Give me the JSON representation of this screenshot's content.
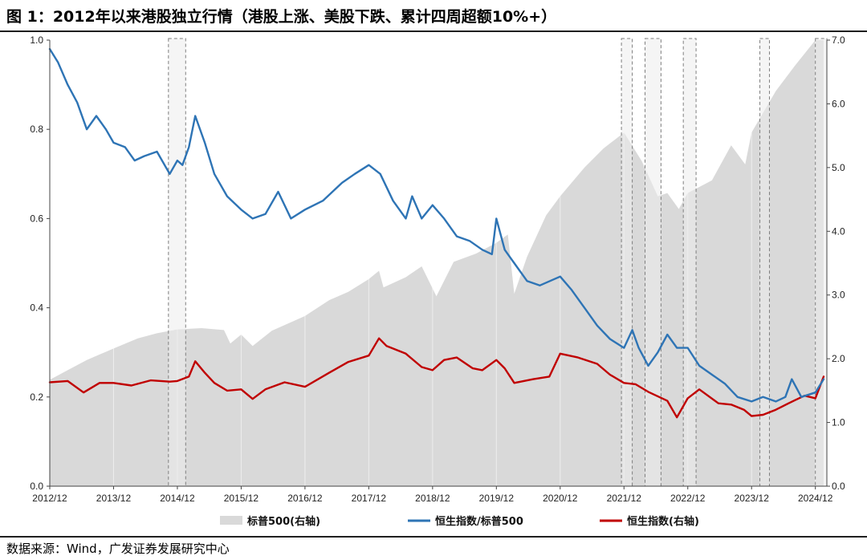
{
  "page": {
    "title": "图 1：2012年以来港股独立行情（港股上涨、美股下跌、累计四周超额10%+）",
    "source": "数据来源：Wind，广发证券发展研究中心"
  },
  "colors": {
    "area": "#d9d9d9",
    "ratio_line": "#2e74b5",
    "hsi_line": "#c00000",
    "highlight_fill": "#ececec",
    "highlight_border": "#7f7f7f"
  },
  "chart_data": {
    "type": "line",
    "x_ticks": [
      "2012/12",
      "2013/12",
      "2014/12",
      "2015/12",
      "2016/12",
      "2017/12",
      "2018/12",
      "2019/12",
      "2020/12",
      "2021/12",
      "2022/12",
      "2023/12",
      "2024/12"
    ],
    "y_left": {
      "min": 0,
      "max": 1,
      "ticks": [
        "0.0",
        "0.2",
        "0.4",
        "0.6",
        "0.8",
        "1.0"
      ]
    },
    "y_right": {
      "min": 0,
      "max": 7,
      "ticks": [
        "0.0",
        "1.0",
        "2.0",
        "3.0",
        "4.0",
        "5.0",
        "6.0",
        "7.0"
      ]
    },
    "grid": true,
    "legend_position": "bottom",
    "series": [
      {
        "name": "标普500(右轴)",
        "type": "area",
        "axis": "right",
        "points": [
          [
            2012.92,
            1.67
          ],
          [
            2013.2,
            1.82
          ],
          [
            2013.5,
            1.98
          ],
          [
            2013.92,
            2.16
          ],
          [
            2014.3,
            2.32
          ],
          [
            2014.6,
            2.4
          ],
          [
            2014.92,
            2.46
          ],
          [
            2015.3,
            2.48
          ],
          [
            2015.65,
            2.45
          ],
          [
            2015.75,
            2.24
          ],
          [
            2015.92,
            2.38
          ],
          [
            2016.1,
            2.2
          ],
          [
            2016.4,
            2.44
          ],
          [
            2016.92,
            2.67
          ],
          [
            2017.3,
            2.92
          ],
          [
            2017.6,
            3.05
          ],
          [
            2017.92,
            3.25
          ],
          [
            2018.08,
            3.38
          ],
          [
            2018.15,
            3.12
          ],
          [
            2018.5,
            3.28
          ],
          [
            2018.75,
            3.45
          ],
          [
            2018.98,
            2.98
          ],
          [
            2019.25,
            3.52
          ],
          [
            2019.6,
            3.65
          ],
          [
            2019.92,
            3.82
          ],
          [
            2020.1,
            3.95
          ],
          [
            2020.2,
            3.02
          ],
          [
            2020.4,
            3.6
          ],
          [
            2020.7,
            4.25
          ],
          [
            2020.92,
            4.55
          ],
          [
            2021.3,
            5.0
          ],
          [
            2021.6,
            5.3
          ],
          [
            2021.92,
            5.55
          ],
          [
            2022.2,
            5.1
          ],
          [
            2022.45,
            4.55
          ],
          [
            2022.6,
            4.6
          ],
          [
            2022.78,
            4.35
          ],
          [
            2022.92,
            4.6
          ],
          [
            2023.3,
            4.8
          ],
          [
            2023.6,
            5.35
          ],
          [
            2023.82,
            5.05
          ],
          [
            2023.92,
            5.55
          ],
          [
            2024.3,
            6.2
          ],
          [
            2024.6,
            6.6
          ],
          [
            2024.92,
            7.0
          ],
          [
            2025.05,
            7.0
          ]
        ]
      },
      {
        "name": "恒生指数/标普500",
        "type": "line",
        "axis": "left",
        "points": [
          [
            2012.92,
            0.98
          ],
          [
            2013.05,
            0.95
          ],
          [
            2013.2,
            0.9
          ],
          [
            2013.35,
            0.86
          ],
          [
            2013.5,
            0.8
          ],
          [
            2013.65,
            0.83
          ],
          [
            2013.8,
            0.8
          ],
          [
            2013.92,
            0.77
          ],
          [
            2014.1,
            0.76
          ],
          [
            2014.25,
            0.73
          ],
          [
            2014.4,
            0.74
          ],
          [
            2014.6,
            0.75
          ],
          [
            2014.8,
            0.7
          ],
          [
            2014.92,
            0.73
          ],
          [
            2015.0,
            0.72
          ],
          [
            2015.1,
            0.76
          ],
          [
            2015.2,
            0.83
          ],
          [
            2015.35,
            0.77
          ],
          [
            2015.5,
            0.7
          ],
          [
            2015.7,
            0.65
          ],
          [
            2015.92,
            0.62
          ],
          [
            2016.1,
            0.6
          ],
          [
            2016.3,
            0.61
          ],
          [
            2016.5,
            0.66
          ],
          [
            2016.7,
            0.6
          ],
          [
            2016.92,
            0.62
          ],
          [
            2017.2,
            0.64
          ],
          [
            2017.5,
            0.68
          ],
          [
            2017.7,
            0.7
          ],
          [
            2017.92,
            0.72
          ],
          [
            2018.1,
            0.7
          ],
          [
            2018.3,
            0.64
          ],
          [
            2018.5,
            0.6
          ],
          [
            2018.6,
            0.65
          ],
          [
            2018.75,
            0.6
          ],
          [
            2018.92,
            0.63
          ],
          [
            2019.1,
            0.6
          ],
          [
            2019.3,
            0.56
          ],
          [
            2019.5,
            0.55
          ],
          [
            2019.7,
            0.53
          ],
          [
            2019.85,
            0.52
          ],
          [
            2019.92,
            0.6
          ],
          [
            2020.05,
            0.53
          ],
          [
            2020.2,
            0.5
          ],
          [
            2020.4,
            0.46
          ],
          [
            2020.6,
            0.45
          ],
          [
            2020.92,
            0.47
          ],
          [
            2021.1,
            0.44
          ],
          [
            2021.3,
            0.4
          ],
          [
            2021.5,
            0.36
          ],
          [
            2021.7,
            0.33
          ],
          [
            2021.92,
            0.31
          ],
          [
            2022.05,
            0.35
          ],
          [
            2022.15,
            0.31
          ],
          [
            2022.3,
            0.27
          ],
          [
            2022.45,
            0.3
          ],
          [
            2022.6,
            0.34
          ],
          [
            2022.75,
            0.31
          ],
          [
            2022.92,
            0.31
          ],
          [
            2023.1,
            0.27
          ],
          [
            2023.3,
            0.25
          ],
          [
            2023.5,
            0.23
          ],
          [
            2023.7,
            0.2
          ],
          [
            2023.92,
            0.19
          ],
          [
            2024.1,
            0.2
          ],
          [
            2024.3,
            0.19
          ],
          [
            2024.45,
            0.2
          ],
          [
            2024.55,
            0.24
          ],
          [
            2024.7,
            0.2
          ],
          [
            2024.92,
            0.21
          ],
          [
            2025.05,
            0.24
          ]
        ]
      },
      {
        "name": "恒生指数(右轴)",
        "type": "line",
        "axis": "right",
        "points": [
          [
            2012.92,
            1.63
          ],
          [
            2013.2,
            1.65
          ],
          [
            2013.45,
            1.47
          ],
          [
            2013.7,
            1.62
          ],
          [
            2013.92,
            1.62
          ],
          [
            2014.2,
            1.58
          ],
          [
            2014.5,
            1.66
          ],
          [
            2014.8,
            1.64
          ],
          [
            2014.92,
            1.65
          ],
          [
            2015.1,
            1.72
          ],
          [
            2015.2,
            1.96
          ],
          [
            2015.35,
            1.78
          ],
          [
            2015.5,
            1.62
          ],
          [
            2015.7,
            1.5
          ],
          [
            2015.92,
            1.52
          ],
          [
            2016.1,
            1.37
          ],
          [
            2016.3,
            1.52
          ],
          [
            2016.6,
            1.63
          ],
          [
            2016.92,
            1.56
          ],
          [
            2017.3,
            1.78
          ],
          [
            2017.6,
            1.95
          ],
          [
            2017.92,
            2.05
          ],
          [
            2018.08,
            2.32
          ],
          [
            2018.2,
            2.2
          ],
          [
            2018.5,
            2.08
          ],
          [
            2018.75,
            1.87
          ],
          [
            2018.92,
            1.82
          ],
          [
            2019.1,
            1.98
          ],
          [
            2019.3,
            2.02
          ],
          [
            2019.55,
            1.85
          ],
          [
            2019.7,
            1.82
          ],
          [
            2019.92,
            1.98
          ],
          [
            2020.05,
            1.85
          ],
          [
            2020.2,
            1.62
          ],
          [
            2020.5,
            1.68
          ],
          [
            2020.75,
            1.72
          ],
          [
            2020.92,
            2.08
          ],
          [
            2021.2,
            2.02
          ],
          [
            2021.5,
            1.92
          ],
          [
            2021.7,
            1.75
          ],
          [
            2021.92,
            1.62
          ],
          [
            2022.1,
            1.6
          ],
          [
            2022.3,
            1.48
          ],
          [
            2022.6,
            1.34
          ],
          [
            2022.75,
            1.08
          ],
          [
            2022.92,
            1.38
          ],
          [
            2023.1,
            1.52
          ],
          [
            2023.4,
            1.3
          ],
          [
            2023.6,
            1.28
          ],
          [
            2023.8,
            1.2
          ],
          [
            2023.92,
            1.1
          ],
          [
            2024.1,
            1.12
          ],
          [
            2024.3,
            1.2
          ],
          [
            2024.5,
            1.3
          ],
          [
            2024.6,
            1.35
          ],
          [
            2024.75,
            1.42
          ],
          [
            2024.92,
            1.38
          ],
          [
            2025.05,
            1.72
          ]
        ]
      }
    ],
    "highlight_periods": [
      [
        2014.78,
        2015.05
      ],
      [
        2021.88,
        2022.05
      ],
      [
        2022.25,
        2022.5
      ],
      [
        2022.85,
        2023.05
      ],
      [
        2024.05,
        2024.2
      ],
      [
        2024.92,
        2025.1
      ]
    ]
  },
  "legend": [
    {
      "label": "标普500(右轴)",
      "kind": "area"
    },
    {
      "label": "恒生指数/标普500",
      "kind": "line-blue"
    },
    {
      "label": "恒生指数(右轴)",
      "kind": "line-red"
    }
  ]
}
